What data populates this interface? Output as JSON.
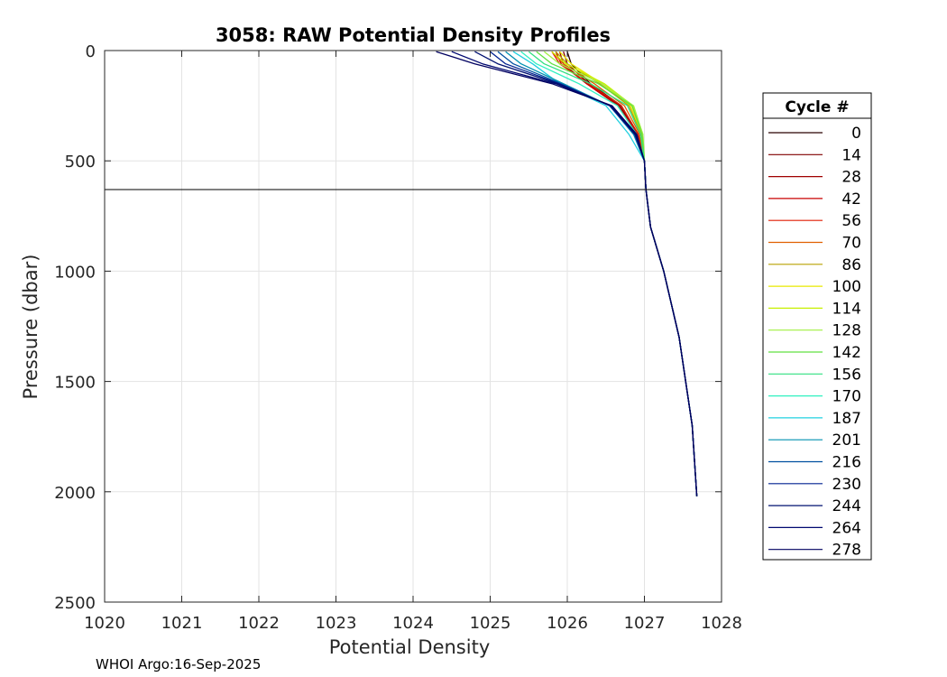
{
  "chart_data": {
    "type": "line",
    "title": "3058: RAW Potential Density Profiles",
    "xlabel": "Potential Density",
    "ylabel": "Pressure (dbar)",
    "xlim": [
      1020,
      1028
    ],
    "ylim": [
      0,
      2500
    ],
    "y_reversed": true,
    "grid": true,
    "x_ticks": [
      "1020",
      "1021",
      "1022",
      "1023",
      "1024",
      "1025",
      "1026",
      "1027",
      "1028"
    ],
    "y_ticks": [
      "0",
      "500",
      "1000",
      "1500",
      "2000",
      "2500"
    ],
    "legend": {
      "title": "Cycle #",
      "placement": "right-outside",
      "entries": [
        "0",
        "14",
        "28",
        "42",
        "56",
        "70",
        "86",
        "100",
        "114",
        "128",
        "142",
        "156",
        "170",
        "187",
        "201",
        "216",
        "230",
        "244",
        "264",
        "278"
      ],
      "colors": [
        "#2a0000",
        "#800000",
        "#a00000",
        "#c80000",
        "#e01a00",
        "#e06000",
        "#b8a000",
        "#e8e800",
        "#c8f000",
        "#a0f040",
        "#60e040",
        "#30e080",
        "#30f0c0",
        "#20d0e0",
        "#0090b0",
        "#0050a0",
        "#002090",
        "#001070",
        "#000870",
        "#000060"
      ]
    },
    "reference_line": {
      "y": 630,
      "color": "#000000"
    },
    "series": [
      {
        "name": "0",
        "x": [
          1026.0,
          1026.05,
          1026.3,
          1026.7,
          1026.92,
          1027.0,
          1027.02,
          1027.08,
          1027.25,
          1027.45,
          1027.62,
          1027.68
        ],
        "y": [
          5,
          60,
          150,
          250,
          380,
          500,
          630,
          800,
          1000,
          1300,
          1700,
          2020
        ]
      },
      {
        "name": "14",
        "x": [
          1025.95,
          1026.0,
          1026.28,
          1026.68,
          1026.92,
          1027.0,
          1027.02,
          1027.08,
          1027.25,
          1027.45,
          1027.62,
          1027.68
        ],
        "y": [
          5,
          60,
          150,
          250,
          380,
          500,
          630,
          800,
          1000,
          1300,
          1700,
          2020
        ]
      },
      {
        "name": "28",
        "x": [
          1025.9,
          1025.95,
          1026.25,
          1026.66,
          1026.91,
          1027.0,
          1027.02,
          1027.08,
          1027.25,
          1027.45,
          1027.62,
          1027.68
        ],
        "y": [
          5,
          60,
          150,
          250,
          380,
          500,
          630,
          800,
          1000,
          1300,
          1700,
          2020
        ]
      },
      {
        "name": "42",
        "x": [
          1025.85,
          1025.92,
          1026.25,
          1026.66,
          1026.91,
          1027.0,
          1027.02,
          1027.08,
          1027.25,
          1027.45,
          1027.62,
          1027.68
        ],
        "y": [
          5,
          60,
          150,
          250,
          380,
          500,
          630,
          800,
          1000,
          1300,
          1700,
          2020
        ]
      },
      {
        "name": "56",
        "x": [
          1025.8,
          1025.9,
          1026.28,
          1026.7,
          1026.92,
          1027.0,
          1027.02,
          1027.08,
          1027.25,
          1027.45,
          1027.62,
          1027.68
        ],
        "y": [
          5,
          60,
          150,
          250,
          380,
          500,
          630,
          800,
          1000,
          1300,
          1700,
          2020
        ]
      },
      {
        "name": "70",
        "x": [
          1025.8,
          1025.95,
          1026.35,
          1026.74,
          1026.94,
          1027.0,
          1027.02,
          1027.08,
          1027.25,
          1027.45,
          1027.62,
          1027.68
        ],
        "y": [
          5,
          60,
          150,
          250,
          380,
          500,
          630,
          800,
          1000,
          1300,
          1700,
          2020
        ]
      },
      {
        "name": "86",
        "x": [
          1025.85,
          1026.0,
          1026.42,
          1026.8,
          1026.96,
          1027.0,
          1027.02,
          1027.08,
          1027.25,
          1027.45,
          1027.62,
          1027.68
        ],
        "y": [
          5,
          60,
          150,
          250,
          380,
          500,
          630,
          800,
          1000,
          1300,
          1700,
          2020
        ]
      },
      {
        "name": "100",
        "x": [
          1025.9,
          1026.05,
          1026.45,
          1026.82,
          1026.97,
          1027.0,
          1027.02,
          1027.08,
          1027.25,
          1027.45,
          1027.62,
          1027.68
        ],
        "y": [
          5,
          60,
          150,
          250,
          380,
          500,
          630,
          800,
          1000,
          1300,
          1700,
          2020
        ]
      },
      {
        "name": "114",
        "x": [
          1025.8,
          1025.98,
          1026.48,
          1026.85,
          1026.98,
          1027.0,
          1027.02,
          1027.08,
          1027.25,
          1027.45,
          1027.62,
          1027.68
        ],
        "y": [
          5,
          60,
          150,
          250,
          380,
          500,
          630,
          800,
          1000,
          1300,
          1700,
          2020
        ]
      },
      {
        "name": "128",
        "x": [
          1025.7,
          1025.9,
          1026.45,
          1026.86,
          1026.98,
          1027.0,
          1027.02,
          1027.08,
          1027.25,
          1027.45,
          1027.62,
          1027.68
        ],
        "y": [
          5,
          60,
          150,
          250,
          380,
          500,
          630,
          800,
          1000,
          1300,
          1700,
          2020
        ]
      },
      {
        "name": "142",
        "x": [
          1025.6,
          1025.8,
          1026.4,
          1026.84,
          1026.97,
          1027.0,
          1027.02,
          1027.08,
          1027.25,
          1027.45,
          1027.62,
          1027.68
        ],
        "y": [
          5,
          60,
          150,
          250,
          380,
          500,
          630,
          800,
          1000,
          1300,
          1700,
          2020
        ]
      },
      {
        "name": "156",
        "x": [
          1025.5,
          1025.7,
          1026.3,
          1026.78,
          1026.95,
          1027.0,
          1027.02,
          1027.08,
          1027.25,
          1027.45,
          1027.62,
          1027.68
        ],
        "y": [
          5,
          60,
          150,
          250,
          380,
          500,
          630,
          800,
          1000,
          1300,
          1700,
          2020
        ]
      },
      {
        "name": "170",
        "x": [
          1025.4,
          1025.6,
          1026.15,
          1026.65,
          1026.9,
          1027.0,
          1027.02,
          1027.08,
          1027.25,
          1027.45,
          1027.62,
          1027.68
        ],
        "y": [
          5,
          60,
          150,
          250,
          380,
          500,
          630,
          800,
          1000,
          1300,
          1700,
          2020
        ]
      },
      {
        "name": "187",
        "x": [
          1025.3,
          1025.55,
          1025.9,
          1026.5,
          1026.8,
          1027.0,
          1027.02,
          1027.08,
          1027.25,
          1027.45,
          1027.62,
          1027.68
        ],
        "y": [
          5,
          60,
          150,
          250,
          380,
          500,
          630,
          800,
          1000,
          1300,
          1700,
          2020
        ]
      },
      {
        "name": "201",
        "x": [
          1025.2,
          1025.4,
          1025.95,
          1026.55,
          1026.86,
          1027.0,
          1027.02,
          1027.08,
          1027.25,
          1027.45,
          1027.62,
          1027.68
        ],
        "y": [
          5,
          60,
          150,
          250,
          380,
          500,
          630,
          800,
          1000,
          1300,
          1700,
          2020
        ]
      },
      {
        "name": "216",
        "x": [
          1025.1,
          1025.3,
          1025.92,
          1026.55,
          1026.87,
          1027.0,
          1027.02,
          1027.08,
          1027.25,
          1027.45,
          1027.62,
          1027.68
        ],
        "y": [
          5,
          60,
          150,
          250,
          380,
          500,
          630,
          800,
          1000,
          1300,
          1700,
          2020
        ]
      },
      {
        "name": "230",
        "x": [
          1025.0,
          1025.2,
          1025.9,
          1026.55,
          1026.88,
          1027.0,
          1027.02,
          1027.08,
          1027.25,
          1027.45,
          1027.62,
          1027.68
        ],
        "y": [
          5,
          60,
          150,
          250,
          380,
          500,
          630,
          800,
          1000,
          1300,
          1700,
          2020
        ]
      },
      {
        "name": "244",
        "x": [
          1024.8,
          1025.1,
          1025.88,
          1026.56,
          1026.88,
          1027.0,
          1027.02,
          1027.08,
          1027.25,
          1027.45,
          1027.62,
          1027.68
        ],
        "y": [
          5,
          60,
          150,
          250,
          380,
          500,
          630,
          800,
          1000,
          1300,
          1700,
          2020
        ]
      },
      {
        "name": "264",
        "x": [
          1024.5,
          1024.9,
          1025.85,
          1026.57,
          1026.89,
          1027.0,
          1027.02,
          1027.08,
          1027.25,
          1027.45,
          1027.62,
          1027.68
        ],
        "y": [
          5,
          60,
          150,
          250,
          380,
          500,
          630,
          800,
          1000,
          1300,
          1700,
          2020
        ]
      },
      {
        "name": "278",
        "x": [
          1024.3,
          1024.8,
          1025.8,
          1026.58,
          1026.9,
          1027.0,
          1027.02,
          1027.08,
          1027.25,
          1027.45,
          1027.62,
          1027.68
        ],
        "y": [
          5,
          60,
          150,
          250,
          380,
          500,
          630,
          800,
          1000,
          1300,
          1700,
          2020
        ]
      }
    ]
  },
  "footer": {
    "text": "WHOI Argo:16-Sep-2025"
  }
}
